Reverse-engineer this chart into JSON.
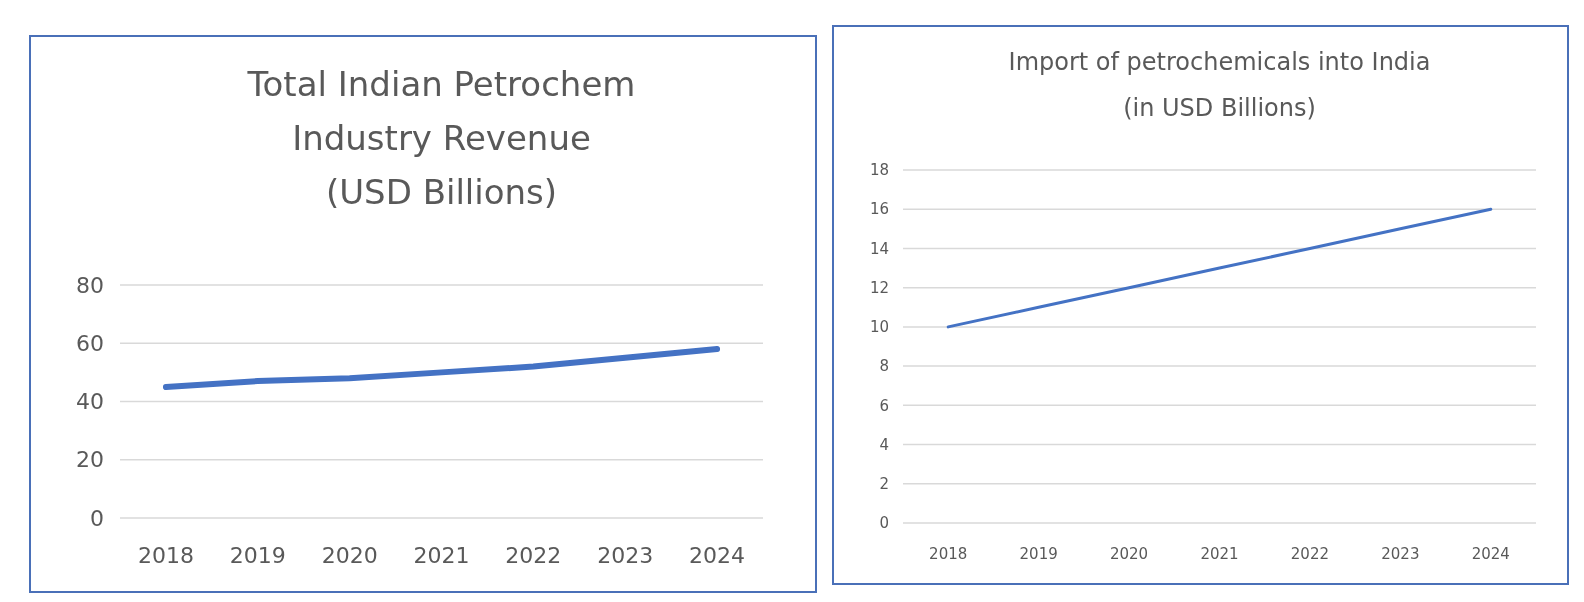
{
  "chart_data": [
    {
      "type": "line",
      "title": "Total Indian Petrochem\nIndustry Revenue\n(USD Billions)",
      "categories": [
        "2018",
        "2019",
        "2020",
        "2021",
        "2022",
        "2023",
        "2024"
      ],
      "series": [
        {
          "color": "#4472c4",
          "values": [
            45,
            47,
            48,
            50,
            52,
            55,
            58
          ]
        }
      ],
      "ylim": [
        0,
        80
      ],
      "yticks": [
        0,
        20,
        40,
        60,
        80
      ],
      "grid": "y",
      "marker": "none"
    },
    {
      "type": "line",
      "title": "Import of petrochemicals into India\n(in USD Billions)",
      "categories": [
        "2018",
        "2019",
        "2020",
        "2021",
        "2022",
        "2023",
        "2024"
      ],
      "series": [
        {
          "color": "#4472c4",
          "values": [
            10,
            11,
            12,
            13,
            14,
            15,
            16
          ]
        }
      ],
      "ylim": [
        0,
        18
      ],
      "yticks": [
        0,
        2,
        4,
        6,
        8,
        10,
        12,
        14,
        16,
        18
      ],
      "grid": "y",
      "marker": "none"
    }
  ]
}
